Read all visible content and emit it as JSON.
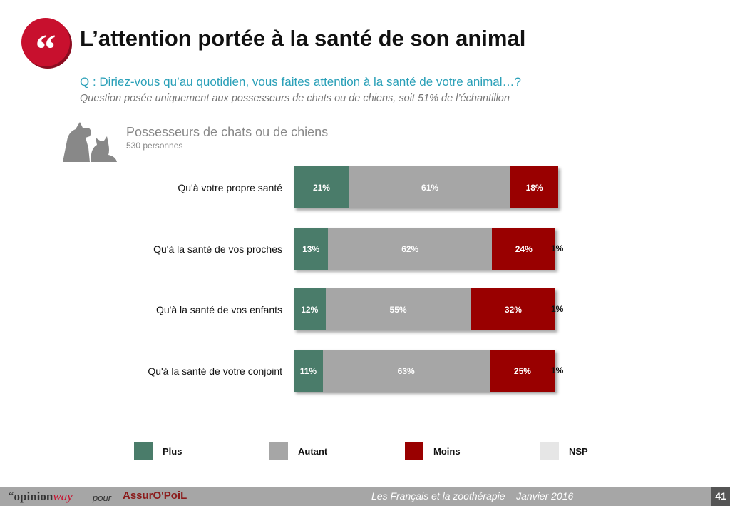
{
  "header": {
    "title": "L’attention portée à la santé de son animal",
    "question": "Q : Diriez-vous qu’au quotidien, vous faites attention à la santé de votre animal…?",
    "note": "Question posée uniquement aux possesseurs de chats ou de chiens, soit 51% de l’échantillon"
  },
  "group": {
    "name": "Possesseurs de chats ou de chiens",
    "count": "530 personnes",
    "icon": "cat-dog-icon"
  },
  "chart_data": {
    "type": "bar",
    "stacked": true,
    "orientation": "horizontal",
    "categories": [
      "Qu'à votre propre santé",
      "Qu'à la santé de vos proches",
      "Qu'à la santé de vos enfants",
      "Qu'à la santé de votre conjoint"
    ],
    "series": [
      {
        "name": "Plus",
        "color": "#4a7c6a",
        "values": [
          21,
          13,
          12,
          11
        ]
      },
      {
        "name": "Autant",
        "color": "#a6a6a6",
        "values": [
          61,
          62,
          55,
          63
        ]
      },
      {
        "name": "Moins",
        "color": "#990000",
        "values": [
          18,
          24,
          32,
          25
        ]
      },
      {
        "name": "NSP",
        "color": "#e6e6e6",
        "values": [
          0,
          1,
          1,
          1
        ]
      }
    ],
    "unit": "%",
    "xlim": [
      0,
      100
    ],
    "legend": "bottom"
  },
  "footer": {
    "brand": "opinion",
    "brand2": "way",
    "pour": "pour",
    "partner": "AssurO'PoiL",
    "text": "Les Français et la zoothérapie – Janvier 2016",
    "page": "41"
  }
}
